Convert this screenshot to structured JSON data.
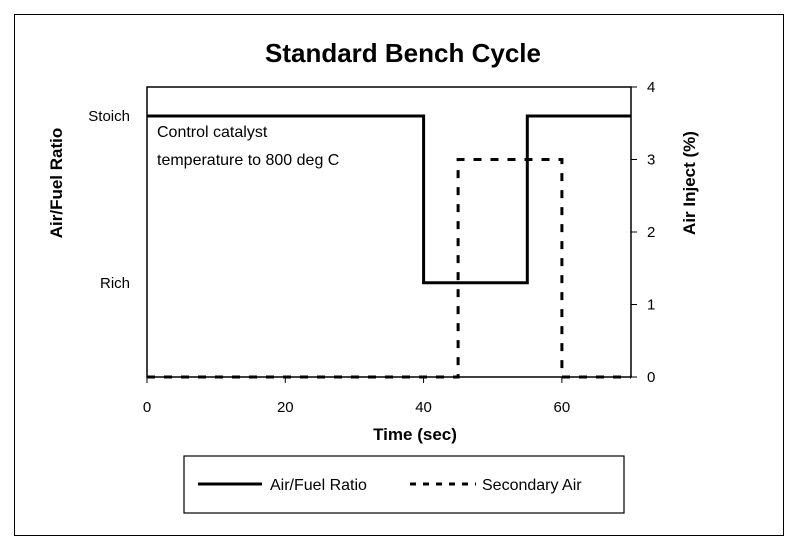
{
  "chart_data": {
    "type": "line",
    "title": "Standard Bench Cycle",
    "xlabel": "Time (sec)",
    "ylabel": "Air/Fuel Ratio",
    "y2label": "Air Inject (%)",
    "xlim": [
      0,
      70
    ],
    "ylim": [
      0,
      4
    ],
    "y2lim": [
      0,
      4
    ],
    "x_ticks": [
      "0",
      "20",
      "40",
      "60"
    ],
    "x_tick_values": [
      0,
      20,
      40,
      60
    ],
    "y_ticks": [
      "Stoich",
      "Rich"
    ],
    "y_tick_values": [
      3.6,
      1.3
    ],
    "y2_ticks": [
      "0",
      "1",
      "2",
      "3",
      "4"
    ],
    "y2_tick_values": [
      0,
      1,
      2,
      3,
      4
    ],
    "grid": false,
    "legend_position": "bottom",
    "annotation": [
      "Control catalyst",
      "temperature to 800 deg C"
    ],
    "series": [
      {
        "name": "Air/Fuel Ratio",
        "style": "solid",
        "axis": "left",
        "x": [
          0,
          40,
          40,
          55,
          55,
          70
        ],
        "y": [
          3.6,
          3.6,
          1.3,
          1.3,
          3.6,
          3.6
        ]
      },
      {
        "name": "Secondary Air",
        "style": "dashed",
        "axis": "right",
        "x": [
          0,
          45,
          45,
          60,
          60,
          70
        ],
        "y": [
          0,
          0,
          3,
          3,
          0,
          0
        ]
      }
    ]
  }
}
